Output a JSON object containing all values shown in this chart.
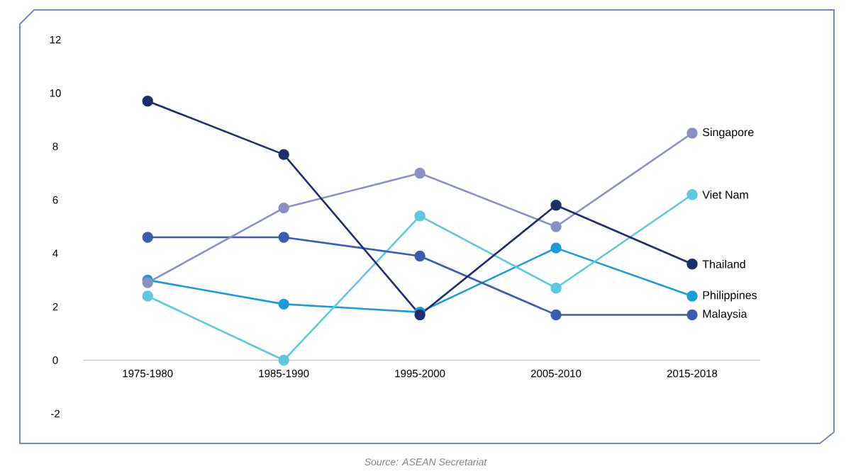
{
  "chart_data": {
    "type": "line",
    "categories": [
      "1975-1980",
      "1985-1990",
      "1995-2000",
      "2005-2010",
      "2015-2018"
    ],
    "series": [
      {
        "name": "Philippines",
        "color": "#1e9bd4",
        "values": [
          3.0,
          2.1,
          1.8,
          4.2,
          2.4
        ]
      },
      {
        "name": "Viet Nam",
        "color": "#5fc8e0",
        "values": [
          2.4,
          0,
          5.4,
          2.7,
          6.2
        ]
      },
      {
        "name": "Malaysia",
        "color": "#3a5db0",
        "values": [
          4.6,
          4.6,
          3.9,
          1.7,
          1.7
        ]
      },
      {
        "name": "Singapore",
        "color": "#8a90c4",
        "values": [
          2.9,
          5.7,
          7.0,
          5.0,
          8.5
        ]
      },
      {
        "name": "Thailand",
        "color": "#1f2d6b",
        "values": [
          9.7,
          7.7,
          1.7,
          5.8,
          3.6
        ]
      }
    ],
    "ylim": [
      -2,
      12
    ],
    "yticks": [
      -2,
      0,
      2,
      4,
      6,
      8,
      10,
      12
    ],
    "marker": "circle",
    "line_style": "solid",
    "annotations": [
      "Source: ASEAN Secretariat"
    ]
  }
}
